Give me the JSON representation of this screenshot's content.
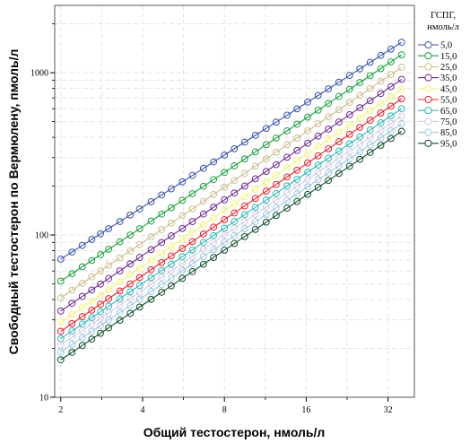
{
  "chart_data": {
    "type": "line",
    "xlabel": "Общий тестостерон, нмоль/л",
    "ylabel": "Свободный тестостерон по Вермюлену, пмоль/л",
    "x_scale": "log",
    "y_scale": "log",
    "xlim": [
      1.9,
      40
    ],
    "ylim": [
      10,
      2600
    ],
    "x_ticks": [
      2,
      4,
      8,
      16,
      32
    ],
    "x_tick_labels": [
      "2",
      "4",
      "8",
      "16",
      "32"
    ],
    "y_ticks": [
      10,
      100,
      1000
    ],
    "y_tick_labels": [
      "10",
      "100",
      "1000"
    ],
    "grid": true,
    "legend": {
      "title_lines": [
        "ГСПГ,",
        "нмоль/л"
      ],
      "placement": "right"
    },
    "marker": "open-circle",
    "x": [
      2.0,
      2.2,
      2.4,
      2.6,
      2.8,
      3.0,
      3.3,
      3.6,
      3.9,
      4.3,
      4.7,
      5.1,
      5.6,
      6.1,
      6.7,
      7.3,
      8.0,
      8.7,
      9.5,
      10.4,
      11.4,
      12.4,
      13.6,
      14.8,
      16.2,
      17.7,
      19.3,
      21.1,
      23.1,
      25.2,
      27.5,
      30.1,
      32.8,
      35.9
    ],
    "series": [
      {
        "name": "5,0",
        "color": "#3950a8",
        "y_at_x_min": 71,
        "y_at_x_max": 1540
      },
      {
        "name": "15,0",
        "color": "#1aa03e",
        "y_at_x_min": 52,
        "y_at_x_max": 1290
      },
      {
        "name": "25,0",
        "color": "#cbbd8c",
        "y_at_x_min": 41,
        "y_at_x_max": 1080
      },
      {
        "name": "35,0",
        "color": "#6e2a8e",
        "y_at_x_min": 34,
        "y_at_x_max": 910
      },
      {
        "name": "45,0",
        "color": "#f3f37a",
        "y_at_x_min": 29,
        "y_at_x_max": 790
      },
      {
        "name": "55,0",
        "color": "#e8212a",
        "y_at_x_min": 25.5,
        "y_at_x_max": 690
      },
      {
        "name": "65,0",
        "color": "#31b7b7",
        "y_at_x_min": 23,
        "y_at_x_max": 600
      },
      {
        "name": "75,0",
        "color": "#d2cbe6",
        "y_at_x_min": 21,
        "y_at_x_max": 540
      },
      {
        "name": "85,0",
        "color": "#9ec6df",
        "y_at_x_min": 19,
        "y_at_x_max": 485
      },
      {
        "name": "95,0",
        "color": "#0f4d2a",
        "y_at_x_min": 17,
        "y_at_x_max": 435
      }
    ]
  }
}
